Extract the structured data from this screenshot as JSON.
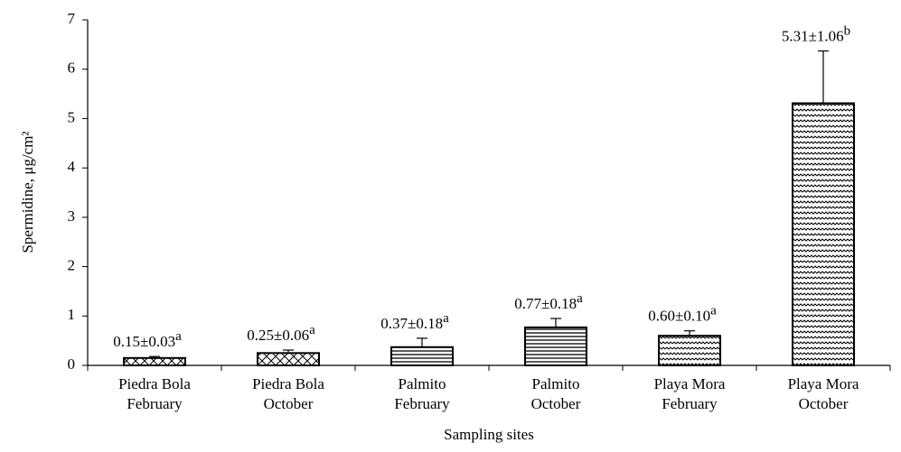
{
  "chart_data": {
    "type": "bar",
    "categories": [
      [
        "Piedra Bola",
        "February"
      ],
      [
        "Piedra Bola",
        "October"
      ],
      [
        "Palmito",
        "February"
      ],
      [
        "Palmito",
        "October"
      ],
      [
        "Playa Mora",
        "February"
      ],
      [
        "Playa Mora",
        "October"
      ]
    ],
    "values": [
      0.15,
      0.25,
      0.37,
      0.77,
      0.6,
      5.31
    ],
    "errors": [
      0.03,
      0.06,
      0.18,
      0.18,
      0.1,
      1.06
    ],
    "value_labels": [
      "0.15±0.03",
      "0.25±0.06",
      "0.37±0.18",
      "0.77±0.18",
      "0.60±0.10",
      "5.31±1.06"
    ],
    "letters": [
      "a",
      "a",
      "a",
      "a",
      "a",
      "b"
    ],
    "patterns": [
      "crosshatch",
      "crosshatch",
      "horizontal",
      "horizontal",
      "wave",
      "wave"
    ],
    "color": "#000000",
    "ylabel": "Spermidine, μg/cm²",
    "xlabel": "Sampling sites",
    "ylim": [
      0,
      7
    ],
    "yticks": [
      0,
      1,
      2,
      3,
      4,
      5,
      6,
      7
    ],
    "grid": false
  }
}
